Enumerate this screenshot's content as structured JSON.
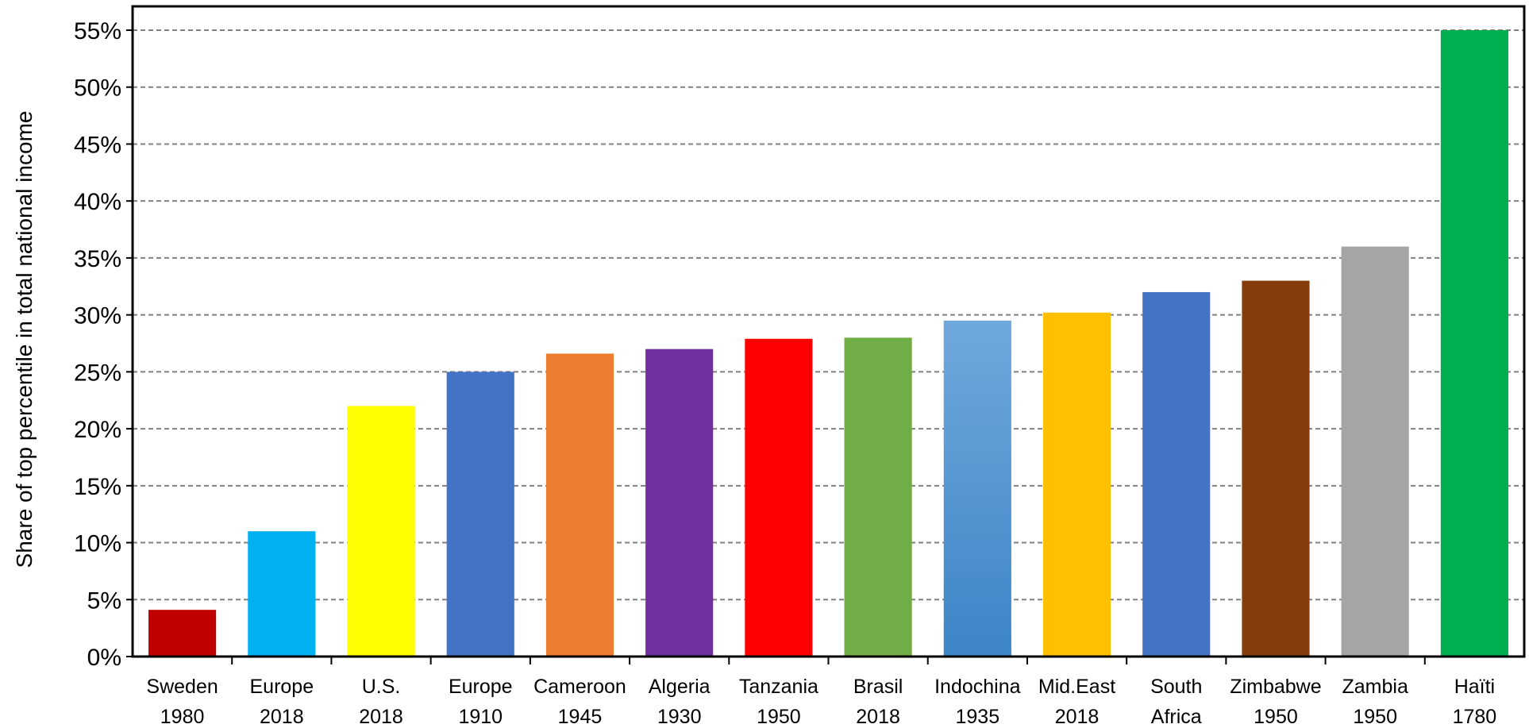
{
  "chart_data": {
    "type": "bar",
    "ylabel": "Share of top percentile in total national income",
    "ylim": [
      0,
      0.57
    ],
    "y_ticks": [
      {
        "value": 0,
        "label": "0%"
      },
      {
        "value": 0.05,
        "label": "5%"
      },
      {
        "value": 0.1,
        "label": "10%"
      },
      {
        "value": 0.15,
        "label": "15%"
      },
      {
        "value": 0.2,
        "label": "20%"
      },
      {
        "value": 0.25,
        "label": "25%"
      },
      {
        "value": 0.3,
        "label": "30%"
      },
      {
        "value": 0.35,
        "label": "35%"
      },
      {
        "value": 0.4,
        "label": "40%"
      },
      {
        "value": 0.45,
        "label": "45%"
      },
      {
        "value": 0.5,
        "label": "50%"
      },
      {
        "value": 0.55,
        "label": "55%"
      }
    ],
    "grid": true,
    "categories": [
      [
        "Sweden",
        "1980"
      ],
      [
        "Europe",
        "2018"
      ],
      [
        "U.S.",
        "2018"
      ],
      [
        "Europe",
        "1910"
      ],
      [
        "Cameroon",
        "1945"
      ],
      [
        "Algeria",
        "1930"
      ],
      [
        "Tanzania",
        "1950"
      ],
      [
        "Brasil",
        "2018"
      ],
      [
        "Indochina",
        "1935"
      ],
      [
        "Mid.East",
        "2018"
      ],
      [
        "South",
        "Africa"
      ],
      [
        "Zimbabwe",
        "1950"
      ],
      [
        "Zambia",
        "1950"
      ],
      [
        "Haïti",
        "1780"
      ]
    ],
    "values": [
      0.041,
      0.11,
      0.22,
      0.25,
      0.266,
      0.27,
      0.279,
      0.28,
      0.295,
      0.302,
      0.32,
      0.33,
      0.36,
      0.55
    ],
    "colors": [
      "#C00000",
      "#00B0F0",
      "#FFFF00",
      "#4472C4",
      "#ED7D31",
      "#7030A0",
      "#FF0000",
      "#70AD47",
      "#5B9BD5",
      "#FFC000",
      "#4472C4",
      "#843C0C",
      "#A5A5A5",
      "#00B050"
    ],
    "gradient_bars": [
      8
    ]
  }
}
